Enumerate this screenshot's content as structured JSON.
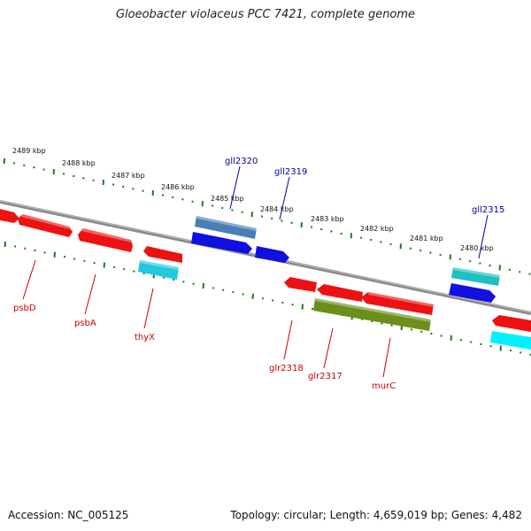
{
  "title": "Gloeobacter violaceus PCC 7421, complete genome",
  "footer": {
    "accession": "Accession: NC_005125",
    "summary": "Topology: circular; Length: 4,659,019 bp; Genes: 4,482"
  },
  "colors": {
    "backbone": "#8a8a8a",
    "tick_green": "#1f7a1f",
    "gene_red": "#ee1111",
    "gene_blue": "#1010e0",
    "gene_steel": "#4a7fb5",
    "gene_cyan": "#22c8e0",
    "gene_teal": "#20c0c0",
    "gene_olive": "#6b8f1a",
    "label_blue": "#000099",
    "label_red": "#cc0000"
  },
  "kbp_labels": [
    "2489 kbp",
    "2488 kbp",
    "2487 kbp",
    "2486 kbp",
    "2485 kbp",
    "2484 kbp",
    "2483 kbp",
    "2482 kbp",
    "2481 kbp",
    "2480 kbp"
  ],
  "genes_forward": [
    {
      "name": "gll2320",
      "color": "steel"
    },
    {
      "name": "gll2319",
      "color": "blue"
    },
    {
      "name": "gll2315",
      "color": "teal"
    }
  ],
  "genes_reverse": [
    {
      "name": "psbD",
      "color": "red"
    },
    {
      "name": "psbA",
      "color": "red"
    },
    {
      "name": "thyX",
      "color": "cyan"
    },
    {
      "name": "glr2318",
      "color": "red"
    },
    {
      "name": "glr2317",
      "color": "olive"
    },
    {
      "name": "murC",
      "color": "red"
    }
  ]
}
